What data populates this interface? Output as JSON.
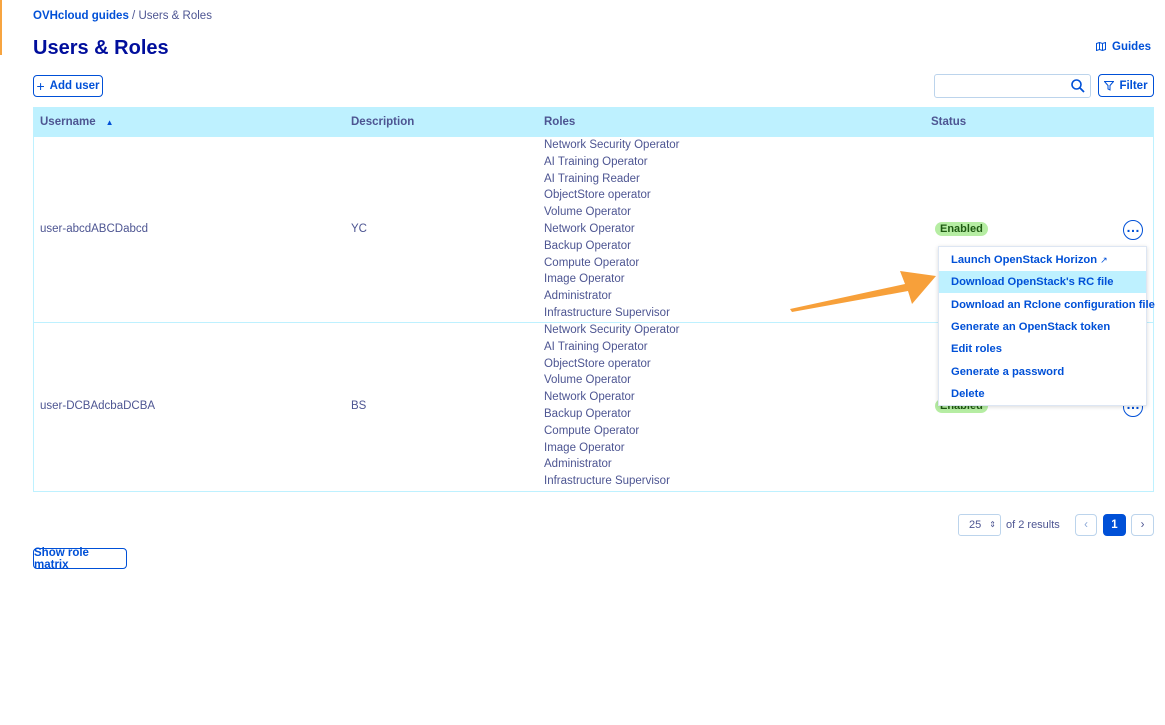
{
  "breadcrumb": {
    "items": [
      "OVHcloud guides",
      "Users & Roles"
    ],
    "separator": "/"
  },
  "header": {
    "title": "Users & Roles",
    "guides": "Guides"
  },
  "toolbar": {
    "add_user": "Add user",
    "filter": "Filter"
  },
  "table": {
    "columns": [
      "Username",
      "Description",
      "Roles",
      "Status"
    ],
    "rows": [
      {
        "username": "user-abcdABCDabcd",
        "description": "YC",
        "status": "Enabled",
        "roles": [
          "Network Security Operator",
          "AI Training Operator",
          "AI Training Reader",
          "ObjectStore operator",
          "Volume Operator",
          "Network Operator",
          "Backup Operator",
          "Compute Operator",
          "Image Operator",
          "Administrator",
          "Infrastructure Supervisor"
        ]
      },
      {
        "username": "user-DCBAdcbaDCBA",
        "description": "BS",
        "status": "Enabled",
        "roles": [
          "Network Security Operator",
          "AI Training Operator",
          "ObjectStore operator",
          "Volume Operator",
          "Network Operator",
          "Backup Operator",
          "Compute Operator",
          "Image Operator",
          "Administrator",
          "Infrastructure Supervisor"
        ]
      }
    ]
  },
  "menu": {
    "items": [
      "Launch OpenStack Horizon",
      "Download OpenStack's RC file",
      "Download an Rclone configuration file",
      "Generate an OpenStack token",
      "Edit roles",
      "Generate a password",
      "Delete"
    ]
  },
  "pagination": {
    "page_size": "25",
    "results": "of 2 results",
    "current_page": "1"
  },
  "footer": {
    "show_role_matrix": "Show role matrix"
  }
}
